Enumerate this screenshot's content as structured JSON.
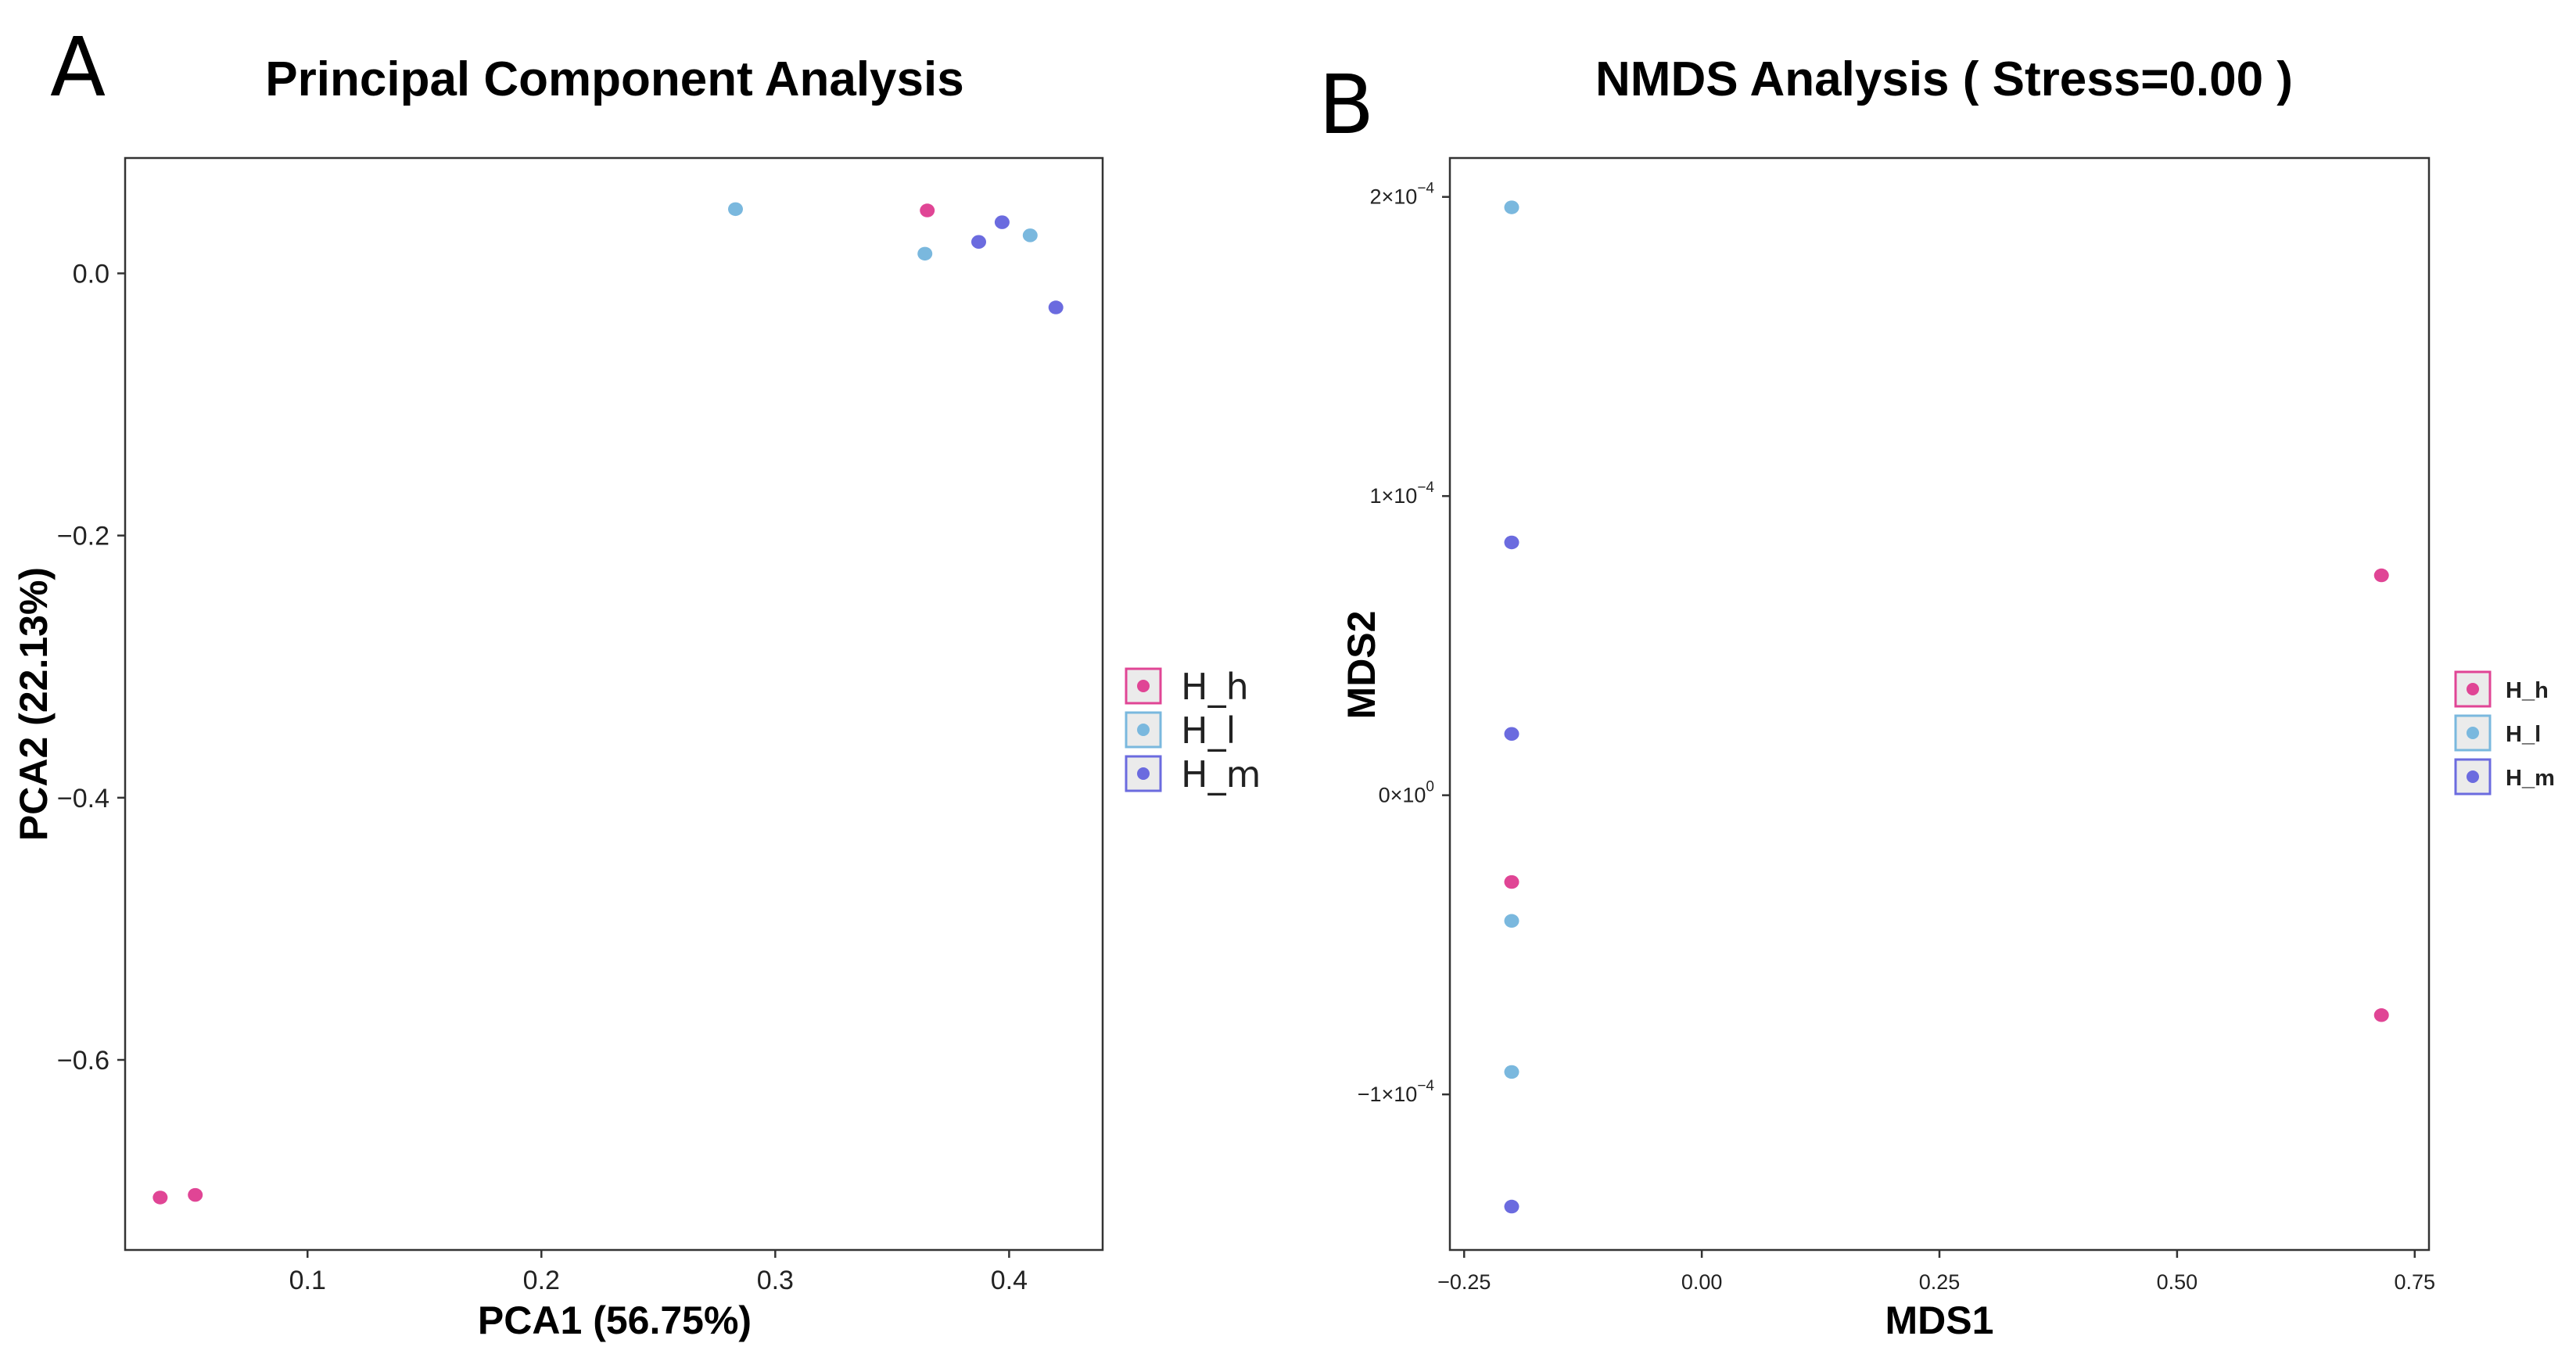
{
  "colors": {
    "H_h": "#e04595",
    "H_l": "#7ab8de",
    "H_m": "#6b6bdf"
  },
  "chart_data": [
    {
      "panel": "A",
      "type": "scatter",
      "title": "Principal Component Analysis",
      "xlabel": "PCA1 (56.75%)",
      "ylabel": "PCA2 (22.13%)",
      "xlim": [
        0.022,
        0.44
      ],
      "ylim": [
        -0.745,
        0.088
      ],
      "xticks": [
        {
          "v": 0.1,
          "label": "0.1"
        },
        {
          "v": 0.2,
          "label": "0.2"
        },
        {
          "v": 0.3,
          "label": "0.3"
        },
        {
          "v": 0.4,
          "label": "0.4"
        }
      ],
      "yticks": [
        {
          "v": 0.0,
          "label": "0.0"
        },
        {
          "v": -0.2,
          "label": "−0.2"
        },
        {
          "v": -0.4,
          "label": "−0.4"
        },
        {
          "v": -0.6,
          "label": "−0.6"
        }
      ],
      "legend": [
        "H_h",
        "H_l",
        "H_m"
      ],
      "series": [
        {
          "name": "H_h",
          "points": [
            [
              0.037,
              -0.705
            ],
            [
              0.052,
              -0.703
            ],
            [
              0.365,
              0.048
            ]
          ]
        },
        {
          "name": "H_l",
          "points": [
            [
              0.283,
              0.049
            ],
            [
              0.364,
              0.015
            ],
            [
              0.409,
              0.029
            ]
          ]
        },
        {
          "name": "H_m",
          "points": [
            [
              0.387,
              0.024
            ],
            [
              0.397,
              0.039
            ],
            [
              0.42,
              -0.026
            ]
          ]
        }
      ]
    },
    {
      "panel": "B",
      "type": "scatter",
      "title": "NMDS Analysis ( Stress=0.00 )",
      "xlabel": "MDS1",
      "ylabel": "MDS2",
      "xlim": [
        -0.265,
        0.765
      ],
      "ylim": [
        -0.000152,
        0.000213
      ],
      "xticks": [
        {
          "v": -0.25,
          "label": "−0.25"
        },
        {
          "v": 0.0,
          "label": "0.00"
        },
        {
          "v": 0.25,
          "label": "0.25"
        },
        {
          "v": 0.5,
          "label": "0.50"
        },
        {
          "v": 0.75,
          "label": "0.75"
        }
      ],
      "yticks": [
        {
          "v": 0.0002,
          "label": "2×10",
          "exp": "−4"
        },
        {
          "v": 0.0001,
          "label": "1×10",
          "exp": "−4"
        },
        {
          "v": 0.0,
          "label": "0×10",
          "exp": "0"
        },
        {
          "v": -0.0001,
          "label": "−1×10",
          "exp": "−4"
        }
      ],
      "legend": [
        "H_h",
        "H_l",
        "H_m"
      ],
      "series": [
        {
          "name": "H_h",
          "points": [
            [
              0.715,
              7.35e-05
            ],
            [
              0.715,
              -7.35e-05
            ],
            [
              -0.2,
              -2.9e-05
            ]
          ]
        },
        {
          "name": "H_l",
          "points": [
            [
              -0.2,
              0.0001965
            ],
            [
              -0.2,
              -4.2e-05
            ],
            [
              -0.2,
              -9.25e-05
            ]
          ]
        },
        {
          "name": "H_m",
          "points": [
            [
              -0.2,
              8.45e-05
            ],
            [
              -0.2,
              2.05e-05
            ],
            [
              -0.2,
              -0.0001375
            ]
          ]
        }
      ]
    }
  ]
}
